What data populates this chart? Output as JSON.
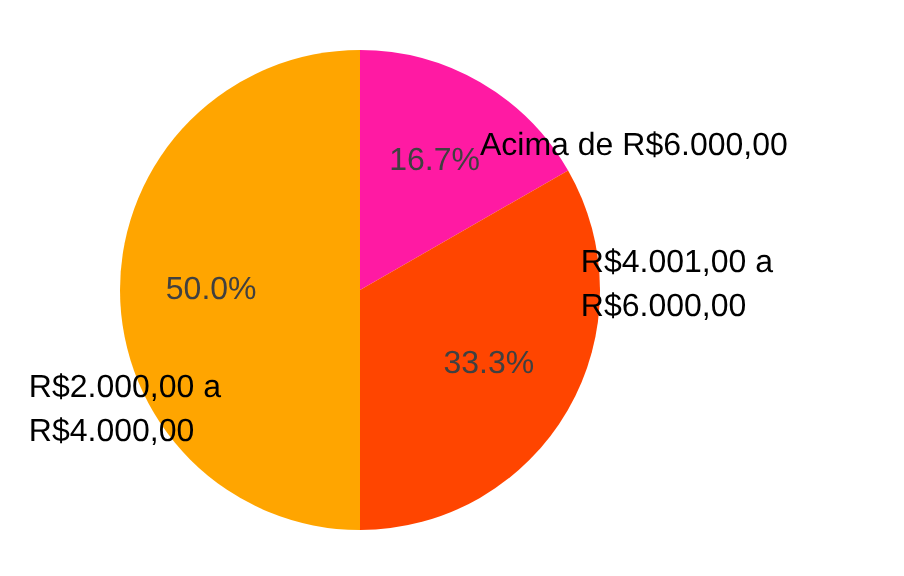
{
  "chart_data": {
    "type": "pie",
    "categories": [
      "Acima de R$6.000,00",
      "R$4.001,00 a R$6.000,00",
      "R$2.000,00 a R$4.000,00"
    ],
    "values": [
      16.7,
      33.3,
      50.0
    ],
    "value_labels": [
      "16.7%",
      "33.3%",
      "50.0%"
    ],
    "colors": [
      "#ff1aa3",
      "#ff4500",
      "#ffa500"
    ],
    "legend": false
  }
}
